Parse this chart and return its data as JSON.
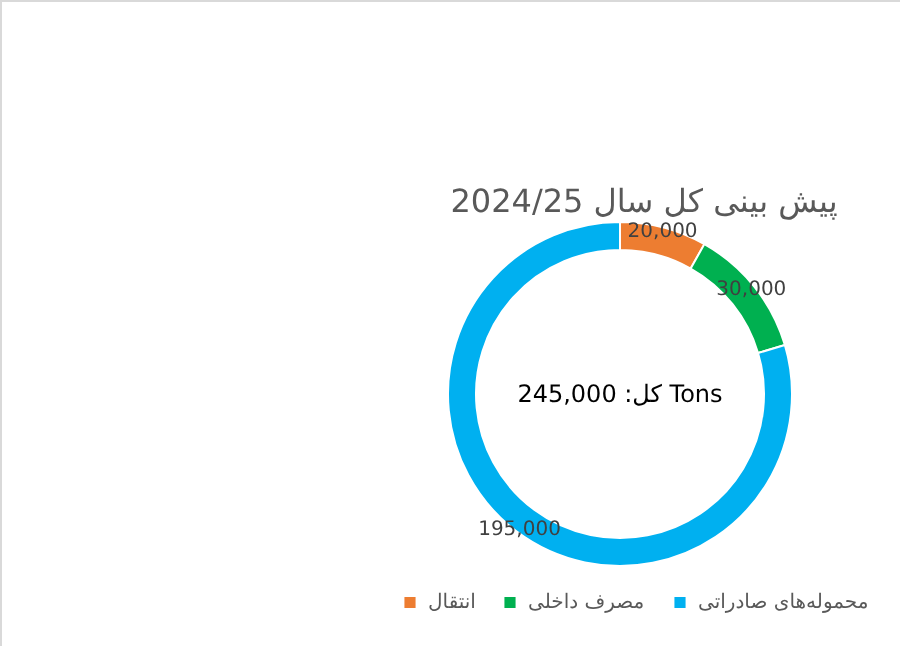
{
  "chart_data": {
    "type": "donut",
    "title": "پیش بینی کل سال 2024/25",
    "categories": [
      "انتقال",
      "مصرف داخلی",
      "محموله‌های صادراتی"
    ],
    "values": [
      20000,
      30000,
      195000
    ],
    "colors": [
      "#ed7d31",
      "#00b050",
      "#00b0f0"
    ],
    "value_labels": [
      "20,000",
      "30,000",
      "195,000"
    ],
    "legend": "bottom",
    "annotations": [
      "کل: 245,000 Tons"
    ]
  }
}
